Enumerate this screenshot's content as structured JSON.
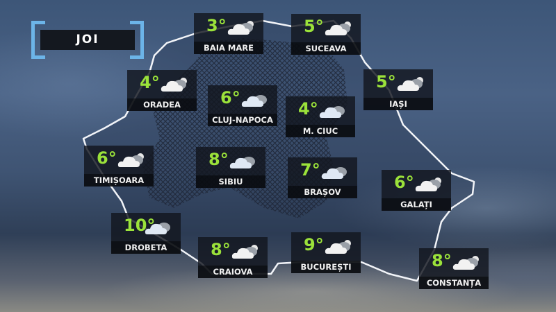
{
  "day_label": "JOI",
  "colors": {
    "temperature": "#9be23a",
    "bracket": "#6cb4e8",
    "card": "#12161e"
  },
  "cities": [
    {
      "name": "BAIA MARE",
      "temp": "3°",
      "icon": "partly-cloudy-icon"
    },
    {
      "name": "SUCEAVA",
      "temp": "5°",
      "icon": "partly-cloudy-icon"
    },
    {
      "name": "ORADEA",
      "temp": "4°",
      "icon": "partly-cloudy-icon"
    },
    {
      "name": "CLUJ-NAPOCA",
      "temp": "6°",
      "icon": "cloudy-icon"
    },
    {
      "name": "M. CIUC",
      "temp": "4°",
      "icon": "cloudy-icon"
    },
    {
      "name": "IAȘI",
      "temp": "5°",
      "icon": "partly-cloudy-icon"
    },
    {
      "name": "TIMIȘOARA",
      "temp": "6°",
      "icon": "partly-cloudy-icon"
    },
    {
      "name": "SIBIU",
      "temp": "8°",
      "icon": "cloudy-icon"
    },
    {
      "name": "BRAȘOV",
      "temp": "7°",
      "icon": "cloudy-icon"
    },
    {
      "name": "GALAȚI",
      "temp": "6°",
      "icon": "partly-cloudy-icon"
    },
    {
      "name": "DROBETA",
      "temp": "10°",
      "icon": "cloudy-icon"
    },
    {
      "name": "CRAIOVA",
      "temp": "8°",
      "icon": "partly-cloudy-icon"
    },
    {
      "name": "BUCUREȘTI",
      "temp": "9°",
      "icon": "partly-cloudy-icon"
    },
    {
      "name": "CONSTANȚA",
      "temp": "8°",
      "icon": "partly-cloudy-icon"
    }
  ]
}
